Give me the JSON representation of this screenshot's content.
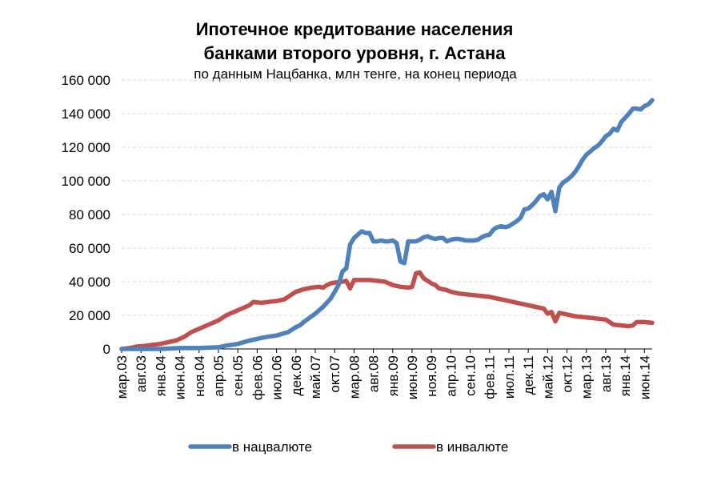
{
  "chart_data": {
    "type": "line",
    "title_line1": "Ипотечное кредитование населения",
    "title_line2": "банками второго уровня, г. Астана",
    "subtitle": "по данным Нацбанка, млн тенге, на конец периода",
    "ylim": [
      0,
      160000
    ],
    "y_ticks": [
      "0",
      "20 000",
      "40 000",
      "60 000",
      "80 000",
      "100 000",
      "120 000",
      "140 000",
      "160 000"
    ],
    "y_tick_values": [
      0,
      20000,
      40000,
      60000,
      80000,
      100000,
      120000,
      140000,
      160000
    ],
    "x_tick_labels": [
      "мар.03",
      "авг.03",
      "янв.04",
      "июн.04",
      "ноя.04",
      "апр.05",
      "сен.05",
      "фев.06",
      "июл.06",
      "дек.06",
      "май.07",
      "окт.07",
      "мар.08",
      "авг.08",
      "янв.09",
      "июн.09",
      "ноя.09",
      "апр.10",
      "сен.10",
      "фев.11",
      "июл.11",
      "дек.11",
      "май.12",
      "окт.12",
      "мар.13",
      "авг.13",
      "янв.14",
      "июн.14"
    ],
    "grid": true,
    "legend_position": "bottom",
    "series": [
      {
        "name": "в нацвалюте",
        "color": "#4F81BD",
        "points": [
          [
            0,
            0
          ],
          [
            3,
            0
          ],
          [
            5,
            0
          ],
          [
            10,
            0
          ],
          [
            15,
            500
          ],
          [
            20,
            500
          ],
          [
            25,
            1000
          ],
          [
            27,
            2000
          ],
          [
            30,
            3000
          ],
          [
            33,
            5000
          ],
          [
            35,
            6000
          ],
          [
            37,
            7000
          ],
          [
            40,
            8000
          ],
          [
            43,
            10000
          ],
          [
            45,
            13000
          ],
          [
            46,
            14000
          ],
          [
            47,
            16000
          ],
          [
            50,
            21000
          ],
          [
            52,
            25000
          ],
          [
            54,
            30000
          ],
          [
            55,
            34000
          ],
          [
            56,
            38000
          ],
          [
            57,
            46000
          ],
          [
            58,
            48000
          ],
          [
            59,
            62000
          ],
          [
            60,
            66000
          ],
          [
            61,
            68000
          ],
          [
            62,
            70000
          ],
          [
            63,
            69000
          ],
          [
            64,
            69000
          ],
          [
            65,
            64000
          ],
          [
            66,
            64000
          ],
          [
            67,
            64500
          ],
          [
            68,
            64000
          ],
          [
            69,
            64000
          ],
          [
            70,
            64500
          ],
          [
            71,
            63000
          ],
          [
            72,
            52000
          ],
          [
            73,
            51000
          ],
          [
            74,
            64000
          ],
          [
            75,
            64000
          ],
          [
            76,
            64000
          ],
          [
            77,
            65000
          ],
          [
            78,
            66500
          ],
          [
            79,
            67000
          ],
          [
            80,
            66000
          ],
          [
            81,
            65500
          ],
          [
            82,
            66000
          ],
          [
            83,
            66000
          ],
          [
            84,
            64000
          ],
          [
            85,
            65000
          ],
          [
            86,
            65500
          ],
          [
            87,
            65500
          ],
          [
            88,
            65000
          ],
          [
            89,
            64500
          ],
          [
            90,
            64500
          ],
          [
            91,
            64500
          ],
          [
            92,
            65000
          ],
          [
            93,
            66500
          ],
          [
            94,
            67500
          ],
          [
            95,
            68000
          ],
          [
            96,
            71000
          ],
          [
            97,
            72500
          ],
          [
            98,
            73000
          ],
          [
            99,
            72500
          ],
          [
            100,
            73000
          ],
          [
            101,
            74500
          ],
          [
            102,
            76000
          ],
          [
            103,
            78000
          ],
          [
            104,
            83000
          ],
          [
            105,
            83500
          ],
          [
            106,
            85500
          ],
          [
            107,
            88000
          ],
          [
            108,
            91000
          ],
          [
            109,
            92000
          ],
          [
            110,
            89000
          ],
          [
            111,
            93500
          ],
          [
            112,
            82000
          ],
          [
            113,
            96000
          ],
          [
            114,
            99000
          ],
          [
            115,
            100500
          ],
          [
            116,
            102500
          ],
          [
            117,
            105000
          ],
          [
            118,
            108500
          ],
          [
            119,
            112500
          ],
          [
            120,
            115500
          ],
          [
            121,
            117500
          ],
          [
            122,
            119500
          ],
          [
            123,
            121000
          ],
          [
            124,
            123500
          ],
          [
            125,
            126500
          ],
          [
            126,
            128000
          ],
          [
            127,
            131000
          ],
          [
            128,
            130000
          ],
          [
            129,
            135000
          ],
          [
            130,
            137500
          ],
          [
            131,
            140000
          ],
          [
            132,
            143000
          ],
          [
            133,
            143000
          ],
          [
            134,
            142500
          ],
          [
            135,
            144500
          ],
          [
            136,
            145500
          ],
          [
            137,
            148000
          ]
        ]
      },
      {
        "name": "в инвалюте",
        "color": "#C0504D",
        "points": [
          [
            0,
            0
          ],
          [
            2,
            500
          ],
          [
            4,
            1500
          ],
          [
            6,
            1800
          ],
          [
            8,
            2500
          ],
          [
            10,
            3000
          ],
          [
            12,
            4000
          ],
          [
            14,
            5000
          ],
          [
            16,
            7000
          ],
          [
            18,
            10000
          ],
          [
            20,
            12000
          ],
          [
            22,
            14000
          ],
          [
            25,
            17000
          ],
          [
            27,
            20000
          ],
          [
            29,
            22000
          ],
          [
            31,
            24000
          ],
          [
            33,
            26000
          ],
          [
            34,
            28000
          ],
          [
            36,
            27500
          ],
          [
            38,
            28000
          ],
          [
            40,
            28500
          ],
          [
            42,
            29500
          ],
          [
            43,
            31000
          ],
          [
            45,
            34000
          ],
          [
            47,
            35500
          ],
          [
            49,
            36500
          ],
          [
            51,
            37000
          ],
          [
            52,
            36500
          ],
          [
            53,
            38000
          ],
          [
            54,
            39000
          ],
          [
            55,
            39500
          ],
          [
            57,
            40000
          ],
          [
            58,
            40500
          ],
          [
            59,
            36000
          ],
          [
            60,
            41000
          ],
          [
            62,
            41000
          ],
          [
            64,
            41000
          ],
          [
            66,
            40500
          ],
          [
            68,
            40000
          ],
          [
            70,
            38000
          ],
          [
            72,
            37000
          ],
          [
            74,
            36500
          ],
          [
            75,
            37000
          ],
          [
            76,
            45000
          ],
          [
            77,
            45500
          ],
          [
            78,
            42000
          ],
          [
            80,
            39000
          ],
          [
            81,
            38000
          ],
          [
            82,
            36000
          ],
          [
            84,
            35000
          ],
          [
            85,
            34000
          ],
          [
            87,
            33000
          ],
          [
            89,
            32500
          ],
          [
            91,
            32000
          ],
          [
            93,
            31500
          ],
          [
            95,
            31000
          ],
          [
            97,
            30000
          ],
          [
            99,
            29000
          ],
          [
            101,
            28000
          ],
          [
            103,
            27000
          ],
          [
            105,
            26000
          ],
          [
            107,
            25000
          ],
          [
            109,
            24000
          ],
          [
            110,
            21000
          ],
          [
            111,
            22000
          ],
          [
            112,
            16500
          ],
          [
            113,
            21500
          ],
          [
            115,
            20500
          ],
          [
            117,
            19500
          ],
          [
            119,
            19000
          ],
          [
            121,
            18500
          ],
          [
            123,
            18000
          ],
          [
            125,
            17500
          ],
          [
            126,
            16000
          ],
          [
            127,
            14500
          ],
          [
            129,
            14000
          ],
          [
            131,
            13500
          ],
          [
            132,
            14000
          ],
          [
            133,
            16000
          ],
          [
            135,
            16000
          ],
          [
            137,
            15500
          ]
        ]
      }
    ]
  }
}
